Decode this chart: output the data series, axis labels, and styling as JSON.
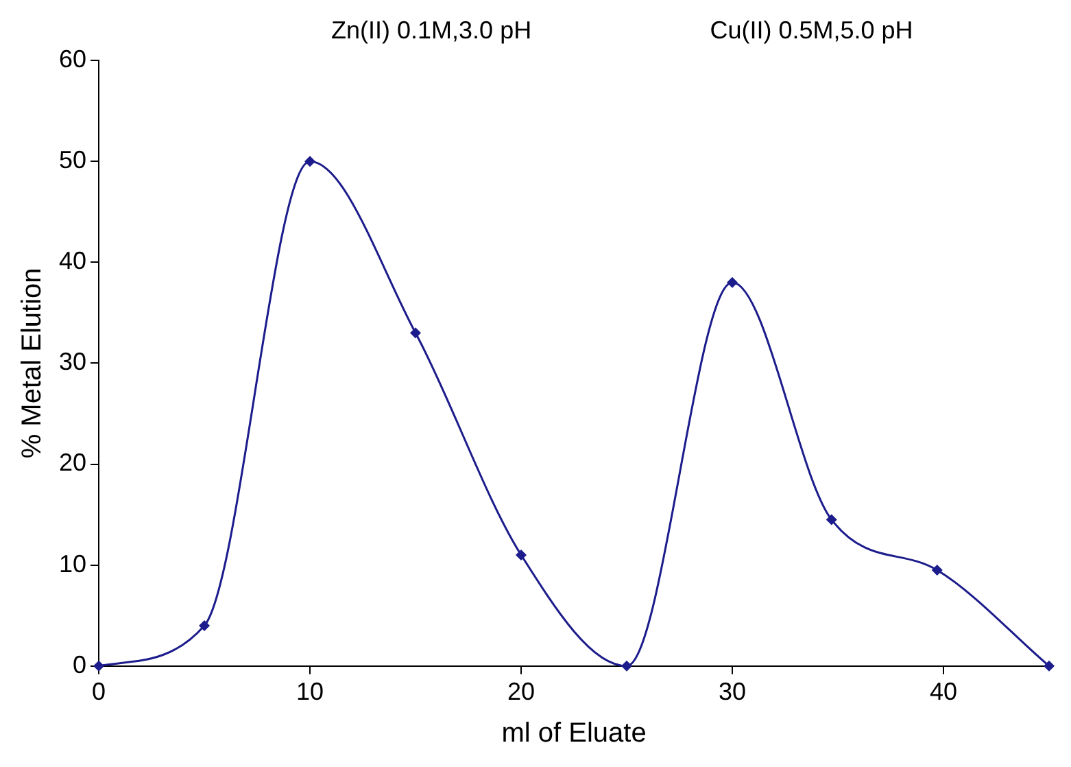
{
  "chart_data": {
    "type": "line",
    "xlabel": "ml of Eluate",
    "ylabel": "% Metal Elution",
    "annotations": [
      "Zn(II) 0.1M,3.0 pH",
      "Cu(II) 0.5M,5.0 pH"
    ],
    "x": [
      0,
      5,
      10,
      15,
      20,
      25,
      30,
      34.7,
      39.7,
      45
    ],
    "series": [
      {
        "color": "#1c1c8c",
        "values": [
          0,
          4,
          50,
          33,
          11,
          0,
          38,
          14.5,
          9.5,
          0
        ]
      }
    ],
    "xlim": [
      0,
      45
    ],
    "xticks": [
      0,
      10,
      20,
      30,
      40
    ],
    "ylim": [
      0,
      60
    ],
    "yticks": [
      0,
      10,
      20,
      30,
      40,
      50,
      60
    ],
    "grid": false,
    "legend": false,
    "marker": "diamond",
    "line_style": "solid"
  }
}
